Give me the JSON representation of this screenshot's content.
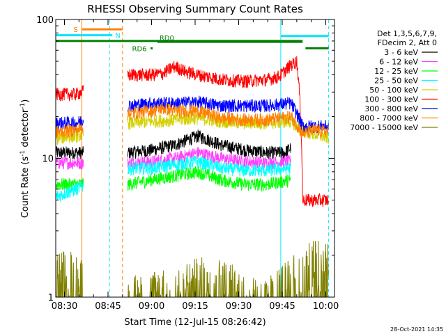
{
  "chart_data": {
    "type": "line",
    "title": "RHESSI Observing Summary Count Rates",
    "xlabel": "Start Time (12-Jul-15 08:26:42)",
    "ylabel_main": "Count Rate (s",
    "ylabel_sup1": "-1",
    "ylabel_mid": " detector",
    "ylabel_sup2": "-1",
    "ylabel_end": ")",
    "y_scale": "log",
    "ylim": [
      1,
      100
    ],
    "xlim_minutes": [
      507,
      603
    ],
    "y_ticks": [
      {
        "value": 1,
        "label": "1"
      },
      {
        "value": 10,
        "label": "10"
      },
      {
        "value": 100,
        "label": "100"
      }
    ],
    "x_ticks": [
      {
        "value": 510,
        "label": "08:30"
      },
      {
        "value": 525,
        "label": "08:45"
      },
      {
        "value": 540,
        "label": "09:00"
      },
      {
        "value": 555,
        "label": "09:15"
      },
      {
        "value": 570,
        "label": "09:30"
      },
      {
        "value": 585,
        "label": "09:45"
      },
      {
        "value": 600,
        "label": "10:00"
      }
    ],
    "legend": {
      "placement": "right",
      "header1": "Det 1,3,5,6,7,9,",
      "header2": "FDecim 2, Att 0"
    },
    "flags": [
      {
        "label": "S",
        "color": "#ff8000",
        "x": [
          516,
          530
        ],
        "y": 85
      },
      {
        "label": "N",
        "color": "#00e5ff",
        "x": [
          507,
          526.5
        ],
        "y": 77
      },
      {
        "label": "RD6",
        "color": "#008000",
        "x": [
          540,
          540
        ],
        "y": 62
      },
      {
        "label": "RD0",
        "color": "#008000",
        "x": [
          542,
          592
        ],
        "y": 69
      }
    ],
    "segment_lines": [
      {
        "color": "#008000",
        "x": [
          507,
          592
        ],
        "y": 70
      },
      {
        "color": "#008000",
        "x": [
          593,
          601
        ],
        "y": 62
      },
      {
        "color": "#00e5ff",
        "x": [
          584.5,
          601
        ],
        "y": 76
      }
    ],
    "vertical_lines": [
      {
        "x": 516,
        "color": "#ff8000",
        "style": "solid"
      },
      {
        "x": 525.5,
        "color": "#00e5ff",
        "style": "dashed"
      },
      {
        "x": 530,
        "color": "#ff8000",
        "style": "dashed"
      },
      {
        "x": 584.5,
        "color": "#00e5ff",
        "style": "solid"
      },
      {
        "x": 601,
        "color": "#00e5ff",
        "style": "dashed"
      }
    ],
    "series": [
      {
        "name": "3 - 6 keV",
        "color": "#000000",
        "points": [
          [
            532,
            11
          ],
          [
            540,
            11.5
          ],
          [
            548,
            12.5
          ],
          [
            556,
            14.5
          ],
          [
            564,
            12.5
          ],
          [
            572,
            11.5
          ],
          [
            580,
            11
          ],
          [
            586,
            11
          ],
          [
            588,
            12
          ]
        ]
      },
      {
        "name": "6 - 12 keV",
        "color": "#ff40ff",
        "points": [
          [
            532,
            9.3
          ],
          [
            540,
            9.5
          ],
          [
            548,
            10
          ],
          [
            556,
            11
          ],
          [
            564,
            10
          ],
          [
            572,
            9.5
          ],
          [
            580,
            9.3
          ],
          [
            588,
            9.5
          ]
        ]
      },
      {
        "name": "12 - 25 keV",
        "color": "#00ff00",
        "points": [
          [
            532,
            6.5
          ],
          [
            540,
            7
          ],
          [
            548,
            7.5
          ],
          [
            556,
            8
          ],
          [
            564,
            7
          ],
          [
            572,
            6.5
          ],
          [
            580,
            6.5
          ],
          [
            588,
            7
          ]
        ]
      },
      {
        "name": "25 - 50 keV",
        "color": "#00ffff",
        "points": [
          [
            507,
            5.3
          ],
          [
            514,
            6
          ],
          [
            532,
            8.5
          ],
          [
            540,
            8.5
          ],
          [
            548,
            9
          ],
          [
            556,
            9.5
          ],
          [
            564,
            8.5
          ],
          [
            572,
            8.2
          ],
          [
            580,
            8.2
          ],
          [
            588,
            8.5
          ]
        ]
      },
      {
        "name": "50 - 100 keV",
        "color": "#d4d000",
        "points": [
          [
            507,
            14
          ],
          [
            514,
            14.5
          ],
          [
            532,
            18
          ],
          [
            540,
            18.5
          ],
          [
            548,
            19
          ],
          [
            556,
            19.5
          ],
          [
            564,
            18.5
          ],
          [
            572,
            18
          ],
          [
            580,
            18
          ],
          [
            588,
            18.5
          ],
          [
            592,
            16
          ],
          [
            596,
            15
          ],
          [
            601,
            14
          ]
        ]
      },
      {
        "name": "100 - 300 keV",
        "color": "#ff0000",
        "points": [
          [
            507,
            29
          ],
          [
            514,
            29
          ],
          [
            532,
            40
          ],
          [
            540,
            40
          ],
          [
            544,
            41
          ],
          [
            548,
            46
          ],
          [
            552,
            42
          ],
          [
            556,
            40
          ],
          [
            564,
            37
          ],
          [
            572,
            36
          ],
          [
            580,
            37
          ],
          [
            584,
            39
          ],
          [
            588,
            47
          ],
          [
            590,
            50
          ],
          [
            592,
            5
          ],
          [
            596,
            5
          ],
          [
            601,
            5
          ]
        ]
      },
      {
        "name": "300 - 800 keV",
        "color": "#0000ff",
        "points": [
          [
            507,
            18
          ],
          [
            514,
            18
          ],
          [
            532,
            24
          ],
          [
            540,
            25
          ],
          [
            548,
            25
          ],
          [
            556,
            25.5
          ],
          [
            564,
            24
          ],
          [
            572,
            24
          ],
          [
            580,
            24
          ],
          [
            588,
            25
          ],
          [
            592,
            17
          ],
          [
            596,
            17
          ],
          [
            601,
            17
          ]
        ]
      },
      {
        "name": "800 - 7000 keV",
        "color": "#ff8000",
        "points": [
          [
            507,
            15.5
          ],
          [
            514,
            16
          ],
          [
            532,
            21
          ],
          [
            540,
            22
          ],
          [
            544,
            23
          ],
          [
            548,
            22
          ],
          [
            556,
            22
          ],
          [
            564,
            19.5
          ],
          [
            572,
            19
          ],
          [
            580,
            19
          ],
          [
            588,
            20
          ],
          [
            592,
            15
          ],
          [
            596,
            16
          ],
          [
            601,
            15.5
          ]
        ]
      },
      {
        "name": "7000 - 15000 keV",
        "color": "#808000",
        "points": [
          [
            507,
            1.4
          ],
          [
            514,
            1.4
          ],
          [
            532,
            0.9
          ],
          [
            560,
            1.3
          ],
          [
            580,
            0.9
          ],
          [
            592,
            1.5
          ],
          [
            596,
            1.8
          ],
          [
            601,
            1.6
          ]
        ]
      }
    ]
  },
  "footer": {
    "timestamp": "28-Oct-2021 14:35"
  }
}
